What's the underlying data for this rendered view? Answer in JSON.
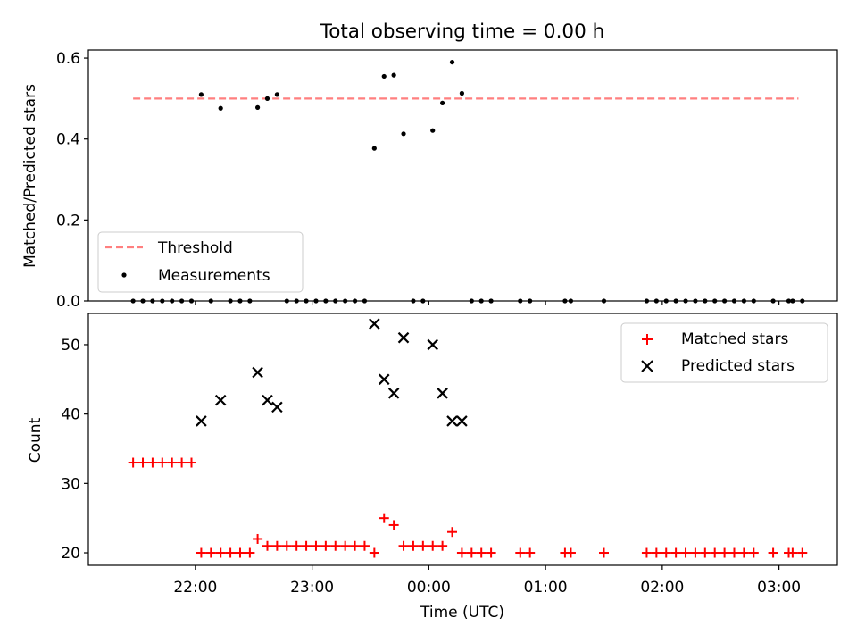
{
  "chart_data": [
    {
      "type": "scatter",
      "title": "Total observing time = 0.00 h",
      "ylabel": "Matched/Predicted stars",
      "ylim": [
        0,
        0.62
      ],
      "yticks": [
        0.0,
        0.2,
        0.4,
        0.6
      ],
      "ytick_labels": [
        "0.0",
        "0.2",
        "0.4",
        "0.6"
      ],
      "xlim": [
        "21:05",
        "03:30"
      ],
      "grid": false,
      "legend_position": "lower-left",
      "threshold": {
        "name": "Threshold",
        "value": 0.5,
        "x_start": "21:28",
        "x_end": "03:10",
        "color": "#ff7f7f"
      },
      "series": [
        {
          "name": "Measurements",
          "color": "#000000",
          "points": [
            {
              "x": "21:28",
              "y": 0
            },
            {
              "x": "21:33",
              "y": 0
            },
            {
              "x": "21:38",
              "y": 0
            },
            {
              "x": "21:43",
              "y": 0
            },
            {
              "x": "21:48",
              "y": 0
            },
            {
              "x": "21:53",
              "y": 0
            },
            {
              "x": "21:58",
              "y": 0
            },
            {
              "x": "22:03",
              "y": 0.51
            },
            {
              "x": "22:08",
              "y": 0
            },
            {
              "x": "22:13",
              "y": 0.476
            },
            {
              "x": "22:18",
              "y": 0
            },
            {
              "x": "22:23",
              "y": 0
            },
            {
              "x": "22:28",
              "y": 0
            },
            {
              "x": "22:32",
              "y": 0.478
            },
            {
              "x": "22:37",
              "y": 0.5
            },
            {
              "x": "22:42",
              "y": 0.51
            },
            {
              "x": "22:47",
              "y": 0
            },
            {
              "x": "22:52",
              "y": 0
            },
            {
              "x": "22:57",
              "y": 0
            },
            {
              "x": "23:02",
              "y": 0
            },
            {
              "x": "23:07",
              "y": 0
            },
            {
              "x": "23:12",
              "y": 0
            },
            {
              "x": "23:17",
              "y": 0
            },
            {
              "x": "23:22",
              "y": 0
            },
            {
              "x": "23:27",
              "y": 0
            },
            {
              "x": "23:32",
              "y": 0.377
            },
            {
              "x": "23:37",
              "y": 0.555
            },
            {
              "x": "23:42",
              "y": 0.558
            },
            {
              "x": "23:47",
              "y": 0.413
            },
            {
              "x": "23:52",
              "y": 0
            },
            {
              "x": "23:57",
              "y": 0
            },
            {
              "x": "00:02",
              "y": 0.421
            },
            {
              "x": "00:07",
              "y": 0.489
            },
            {
              "x": "00:12",
              "y": 0.59
            },
            {
              "x": "00:17",
              "y": 0.513
            },
            {
              "x": "00:22",
              "y": 0
            },
            {
              "x": "00:27",
              "y": 0
            },
            {
              "x": "00:32",
              "y": 0
            },
            {
              "x": "00:47",
              "y": 0
            },
            {
              "x": "00:52",
              "y": 0
            },
            {
              "x": "01:10",
              "y": 0
            },
            {
              "x": "01:13",
              "y": 0
            },
            {
              "x": "01:30",
              "y": 0
            },
            {
              "x": "01:52",
              "y": 0
            },
            {
              "x": "01:57",
              "y": 0
            },
            {
              "x": "02:02",
              "y": 0
            },
            {
              "x": "02:07",
              "y": 0
            },
            {
              "x": "02:12",
              "y": 0
            },
            {
              "x": "02:17",
              "y": 0
            },
            {
              "x": "02:22",
              "y": 0
            },
            {
              "x": "02:27",
              "y": 0
            },
            {
              "x": "02:32",
              "y": 0
            },
            {
              "x": "02:37",
              "y": 0
            },
            {
              "x": "02:42",
              "y": 0
            },
            {
              "x": "02:47",
              "y": 0
            },
            {
              "x": "02:57",
              "y": 0
            },
            {
              "x": "03:05",
              "y": 0
            },
            {
              "x": "03:07",
              "y": 0
            },
            {
              "x": "03:12",
              "y": 0
            }
          ]
        }
      ]
    },
    {
      "type": "scatter",
      "xlabel": "Time (UTC)",
      "ylabel": "Count",
      "ylim": [
        18.2,
        54.5
      ],
      "yticks": [
        20,
        30,
        40,
        50
      ],
      "ytick_labels": [
        "20",
        "30",
        "40",
        "50"
      ],
      "xlim": [
        "21:05",
        "03:30"
      ],
      "xticks": [
        "22:00",
        "23:00",
        "00:00",
        "01:00",
        "02:00",
        "03:00"
      ],
      "xtick_labels": [
        "22:00",
        "23:00",
        "00:00",
        "01:00",
        "02:00",
        "03:00"
      ],
      "grid": false,
      "legend_position": "upper-right",
      "series": [
        {
          "name": "Matched stars",
          "marker": "plus",
          "color": "#ff0000",
          "points": [
            {
              "x": "21:28",
              "y": 33
            },
            {
              "x": "21:33",
              "y": 33
            },
            {
              "x": "21:38",
              "y": 33
            },
            {
              "x": "21:43",
              "y": 33
            },
            {
              "x": "21:48",
              "y": 33
            },
            {
              "x": "21:53",
              "y": 33
            },
            {
              "x": "21:58",
              "y": 33
            },
            {
              "x": "22:03",
              "y": 20
            },
            {
              "x": "22:08",
              "y": 20
            },
            {
              "x": "22:13",
              "y": 20
            },
            {
              "x": "22:18",
              "y": 20
            },
            {
              "x": "22:23",
              "y": 20
            },
            {
              "x": "22:28",
              "y": 20
            },
            {
              "x": "22:32",
              "y": 22
            },
            {
              "x": "22:37",
              "y": 21
            },
            {
              "x": "22:42",
              "y": 21
            },
            {
              "x": "22:47",
              "y": 21
            },
            {
              "x": "22:52",
              "y": 21
            },
            {
              "x": "22:57",
              "y": 21
            },
            {
              "x": "23:02",
              "y": 21
            },
            {
              "x": "23:07",
              "y": 21
            },
            {
              "x": "23:12",
              "y": 21
            },
            {
              "x": "23:17",
              "y": 21
            },
            {
              "x": "23:22",
              "y": 21
            },
            {
              "x": "23:27",
              "y": 21
            },
            {
              "x": "23:32",
              "y": 20
            },
            {
              "x": "23:37",
              "y": 25
            },
            {
              "x": "23:42",
              "y": 24
            },
            {
              "x": "23:47",
              "y": 21
            },
            {
              "x": "23:52",
              "y": 21
            },
            {
              "x": "23:57",
              "y": 21
            },
            {
              "x": "00:02",
              "y": 21
            },
            {
              "x": "00:07",
              "y": 21
            },
            {
              "x": "00:12",
              "y": 23
            },
            {
              "x": "00:17",
              "y": 20
            },
            {
              "x": "00:22",
              "y": 20
            },
            {
              "x": "00:27",
              "y": 20
            },
            {
              "x": "00:32",
              "y": 20
            },
            {
              "x": "00:47",
              "y": 20
            },
            {
              "x": "00:52",
              "y": 20
            },
            {
              "x": "01:10",
              "y": 20
            },
            {
              "x": "01:13",
              "y": 20
            },
            {
              "x": "01:30",
              "y": 20
            },
            {
              "x": "01:52",
              "y": 20
            },
            {
              "x": "01:57",
              "y": 20
            },
            {
              "x": "02:02",
              "y": 20
            },
            {
              "x": "02:07",
              "y": 20
            },
            {
              "x": "02:12",
              "y": 20
            },
            {
              "x": "02:17",
              "y": 20
            },
            {
              "x": "02:22",
              "y": 20
            },
            {
              "x": "02:27",
              "y": 20
            },
            {
              "x": "02:32",
              "y": 20
            },
            {
              "x": "02:37",
              "y": 20
            },
            {
              "x": "02:42",
              "y": 20
            },
            {
              "x": "02:47",
              "y": 20
            },
            {
              "x": "02:57",
              "y": 20
            },
            {
              "x": "03:05",
              "y": 20
            },
            {
              "x": "03:07",
              "y": 20
            },
            {
              "x": "03:12",
              "y": 20
            }
          ]
        },
        {
          "name": "Predicted stars",
          "marker": "x",
          "color": "#000000",
          "points": [
            {
              "x": "22:03",
              "y": 39
            },
            {
              "x": "22:13",
              "y": 42
            },
            {
              "x": "22:32",
              "y": 46
            },
            {
              "x": "22:37",
              "y": 42
            },
            {
              "x": "22:42",
              "y": 41
            },
            {
              "x": "23:32",
              "y": 53
            },
            {
              "x": "23:37",
              "y": 45
            },
            {
              "x": "23:42",
              "y": 43
            },
            {
              "x": "23:47",
              "y": 51
            },
            {
              "x": "00:02",
              "y": 50
            },
            {
              "x": "00:07",
              "y": 43
            },
            {
              "x": "00:12",
              "y": 39
            },
            {
              "x": "00:17",
              "y": 39
            }
          ]
        }
      ]
    }
  ]
}
